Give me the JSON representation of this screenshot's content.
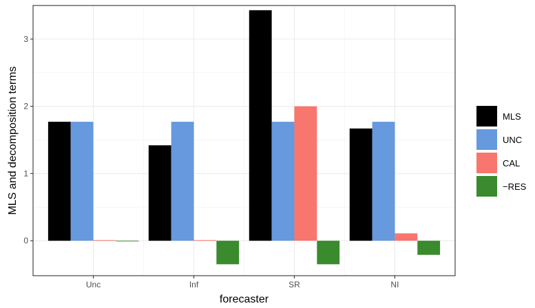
{
  "chart_data": {
    "type": "bar",
    "xlabel": "forecaster",
    "ylabel": "MLS and decomposition terms",
    "categories": [
      "Unc",
      "Inf",
      "SR",
      "NI"
    ],
    "series": [
      {
        "name": "MLS",
        "color": "#000000",
        "values": [
          1.77,
          1.42,
          3.43,
          1.67
        ]
      },
      {
        "name": "UNC",
        "color": "#6699DD",
        "values": [
          1.77,
          1.77,
          1.77,
          1.77
        ]
      },
      {
        "name": "CAL",
        "color": "#F8766D",
        "values": [
          0.01,
          0.01,
          2.0,
          0.11
        ]
      },
      {
        "name": "−RES",
        "color": "#3A8A2E",
        "values": [
          -0.01,
          -0.35,
          -0.35,
          -0.21
        ]
      }
    ],
    "ylim": [
      -0.52,
      3.5
    ],
    "yticks": [
      0,
      1,
      2,
      3
    ],
    "ytick_labels": [
      "0",
      "1",
      "2",
      "3"
    ],
    "grid": true,
    "legend_position": "right"
  }
}
